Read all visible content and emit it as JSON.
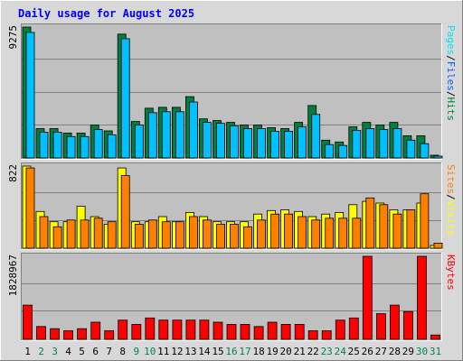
{
  "chart_data": {
    "type": "bar",
    "title": "Daily usage for August 2025",
    "categories": [
      "1",
      "2",
      "3",
      "4",
      "5",
      "6",
      "7",
      "8",
      "9",
      "10",
      "11",
      "12",
      "13",
      "14",
      "15",
      "16",
      "17",
      "18",
      "19",
      "20",
      "21",
      "22",
      "23",
      "24",
      "25",
      "26",
      "27",
      "28",
      "29",
      "30",
      "31"
    ],
    "weekend_categories": [
      "2",
      "3",
      "9",
      "10",
      "16",
      "17",
      "23",
      "24",
      "30",
      "31"
    ],
    "colors": {
      "title": "#0000ff",
      "hits": "#008040",
      "files": "#00c0ff",
      "pages": "#00e0ff",
      "visits": "#ff8000",
      "sites": "#ffff00",
      "kbytes": "#ff0000",
      "weekday_label": "#000000",
      "weekend_label": "#00805c",
      "panel_bg": "#c0c0c0",
      "frame_bg": "#d8d8d8"
    },
    "panels": [
      {
        "name": "hits-files-pages",
        "max_label": "9275",
        "ymax": 9275,
        "labels": [
          {
            "text": "Pages",
            "color": "#00e0ff"
          },
          {
            "text": "/",
            "color": "#000000"
          },
          {
            "text": "Files",
            "color": "#0060ff"
          },
          {
            "text": "/",
            "color": "#000000"
          },
          {
            "text": "Hits",
            "color": "#008040"
          }
        ],
        "series": [
          {
            "name": "Hits",
            "color": "#008040",
            "values": [
              9275,
              2079,
              2079,
              1765,
              1765,
              2331,
              1922,
              8773,
              2582,
              3526,
              3589,
              3589,
              4344,
              2771,
              2645,
              2519,
              2331,
              2331,
              2143,
              2079,
              2520,
              3715,
              1261,
              1135,
              2205,
              2520,
              2331,
              2520,
              1576,
              1576,
              189
            ]
          },
          {
            "name": "Files",
            "color": "#00c0ff",
            "values": [
              8900,
              1827,
              1827,
              1513,
              1513,
              2017,
              1639,
              8450,
              2331,
              3211,
              3274,
              3274,
              3967,
              2520,
              2457,
              2268,
              2079,
              2079,
              1890,
              1890,
              2205,
              3085,
              945,
              882,
              1953,
              2079,
              2017,
              2079,
              1261,
              1009,
              126
            ]
          }
        ]
      },
      {
        "name": "visits-sites",
        "max_label": "822",
        "ymax": 822,
        "labels": [
          {
            "text": "Sites",
            "color": "#ff8000"
          },
          {
            "text": "/",
            "color": "#000000"
          },
          {
            "text": "Visits",
            "color": "#ffff00"
          }
        ],
        "series": [
          {
            "name": "Visits",
            "color": "#ffff00",
            "values": [
              822,
              368,
              265,
              265,
              419,
              316,
              239,
              803,
              265,
              265,
              316,
              265,
              358,
              316,
              265,
              265,
              265,
              341,
              377,
              384,
              368,
              316,
              341,
              358,
              435,
              469,
              452,
              384,
              384,
              452,
              28
            ]
          },
          {
            "name": "Sites",
            "color": "#ff8000",
            "values": [
              803,
              316,
              214,
              282,
              282,
              300,
              265,
              726,
              239,
              282,
              265,
              265,
              316,
              282,
              239,
              239,
              214,
              282,
              341,
              341,
              316,
              282,
              300,
              300,
              300,
              503,
              435,
              341,
              384,
              545,
              51
            ]
          }
        ]
      },
      {
        "name": "kbytes",
        "max_label": "1828967",
        "ymax": 1828967,
        "labels": [
          {
            "text": "KBytes",
            "color": "#ff0000"
          }
        ],
        "series": [
          {
            "name": "KBytes",
            "color": "#ff0000",
            "values": [
              754000,
              282000,
              235000,
              188000,
              235000,
              377000,
              188000,
              424000,
              330000,
              471000,
              424000,
              424000,
              424000,
              424000,
              377000,
              330000,
              330000,
              282000,
              377000,
              330000,
              330000,
              188000,
              188000,
              424000,
              471000,
              1828967,
              565000,
              754000,
              612000,
              1828967,
              95000
            ]
          }
        ]
      }
    ],
    "grid": true,
    "legend": "right-vertical-per-panel"
  }
}
